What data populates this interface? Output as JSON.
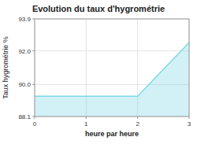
{
  "chart_data": {
    "type": "area",
    "title": "Evolution du taux d'hygrométrie",
    "xlabel": "heure par heure",
    "ylabel": "Taux hygrométrie %",
    "x": [
      0,
      2,
      3
    ],
    "values": [
      89.3,
      89.3,
      92.5
    ],
    "color": "#7dd8e8",
    "xlim": [
      0,
      3
    ],
    "ylim": [
      88.1,
      93.9
    ],
    "xticks": [
      0,
      1,
      2,
      3
    ],
    "yticks": [
      88.1,
      {
        "value": 90.0,
        "label": "90.0"
      },
      {
        "value": 92.0,
        "label": "92.0"
      },
      93.9
    ],
    "grid": true
  }
}
